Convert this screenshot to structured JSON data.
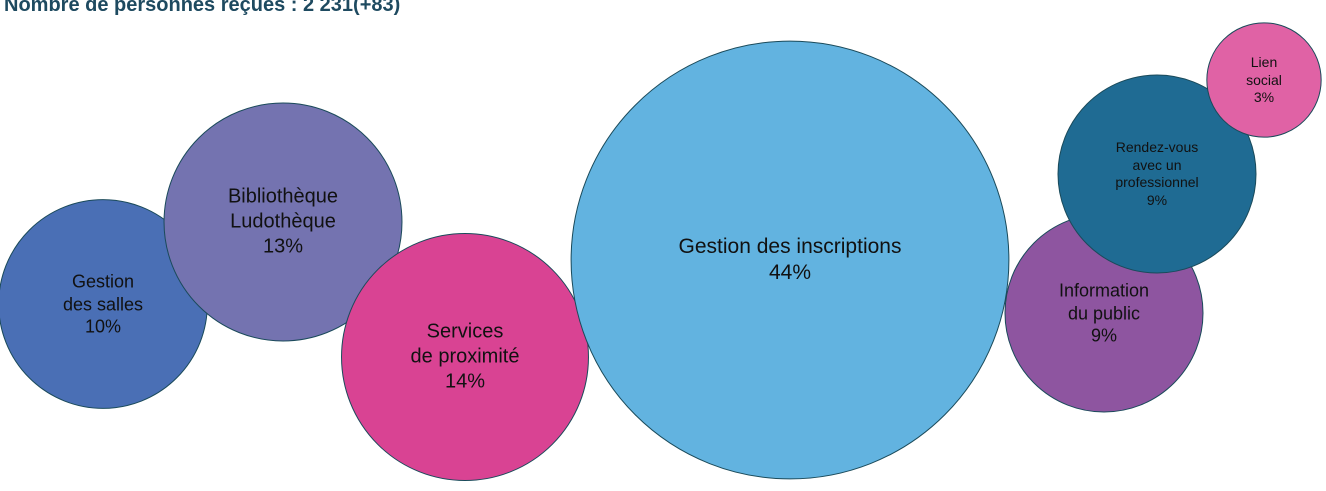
{
  "chart_data": {
    "type": "bubble",
    "title": "Nombre de personnes reçues : 2 231(+83)",
    "categories": [
      "Gestion\ndes salles",
      "Bibliothèque\nLudothèque",
      "Services\nde proximité",
      "Gestion des inscriptions",
      "Information\ndu public",
      "Rendez-vous\navec un\nprofessionnel",
      "Lien social"
    ],
    "values": [
      10,
      13,
      14,
      44,
      9,
      9,
      3
    ],
    "value_labels": [
      "10%",
      "13%",
      "14%",
      "44%",
      "9%",
      "9%",
      "3%"
    ],
    "colors": [
      "#4a6fb5",
      "#7473b0",
      "#d94393",
      "#62b3e0",
      "#8e55a0",
      "#1f6b93",
      "#e062a5"
    ]
  }
}
